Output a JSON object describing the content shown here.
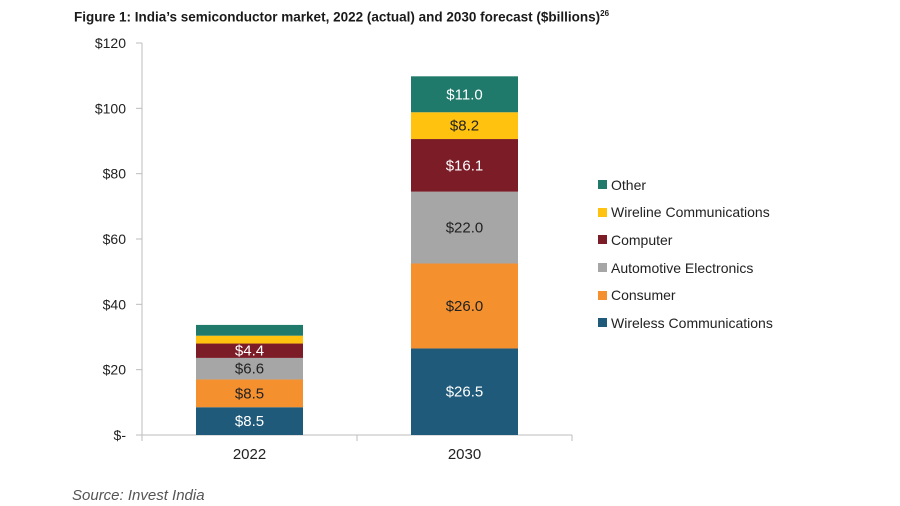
{
  "title": {
    "text": "Figure 1: India’s semiconductor market, 2022 (actual) and 2030 forecast ($billions)",
    "footnote": "26"
  },
  "source": "Source: Invest India",
  "chart_data": {
    "type": "bar",
    "stacked": true,
    "categories": [
      "2022",
      "2030"
    ],
    "series": [
      {
        "name": "Wireless Communications",
        "color": "#1f5a7a",
        "values": [
          8.5,
          26.5
        ],
        "labels": [
          "$8.5",
          "$26.5"
        ]
      },
      {
        "name": "Consumer",
        "color": "#f5902f",
        "values": [
          8.5,
          26.0
        ],
        "labels": [
          "$8.5",
          "$26.0"
        ]
      },
      {
        "name": "Automotive Electronics",
        "color": "#a6a6a6",
        "values": [
          6.6,
          22.0
        ],
        "labels": [
          "$6.6",
          "$22.0"
        ]
      },
      {
        "name": "Computer",
        "color": "#7b1c27",
        "values": [
          4.4,
          16.1
        ],
        "labels": [
          "$4.4",
          "$16.1"
        ]
      },
      {
        "name": "Wireline Communications",
        "color": "#ffc20e",
        "values": [
          2.4,
          8.2
        ],
        "labels": [
          "",
          "$8.2"
        ]
      },
      {
        "name": "Other",
        "color": "#1f7a6b",
        "values": [
          3.3,
          11.0
        ],
        "labels": [
          "",
          "$11.0"
        ]
      }
    ],
    "ylim": [
      0,
      120
    ],
    "yticks": [
      0,
      20,
      40,
      60,
      80,
      100,
      120
    ],
    "ytick_labels": [
      "$-",
      "$20",
      "$40",
      "$60",
      "$80",
      "$100",
      "$120"
    ],
    "xlabel": "",
    "ylabel": "",
    "legend_position": "right",
    "legend_order": [
      "Other",
      "Wireline Communications",
      "Computer",
      "Automotive Electronics",
      "Consumer",
      "Wireless Communications"
    ]
  }
}
